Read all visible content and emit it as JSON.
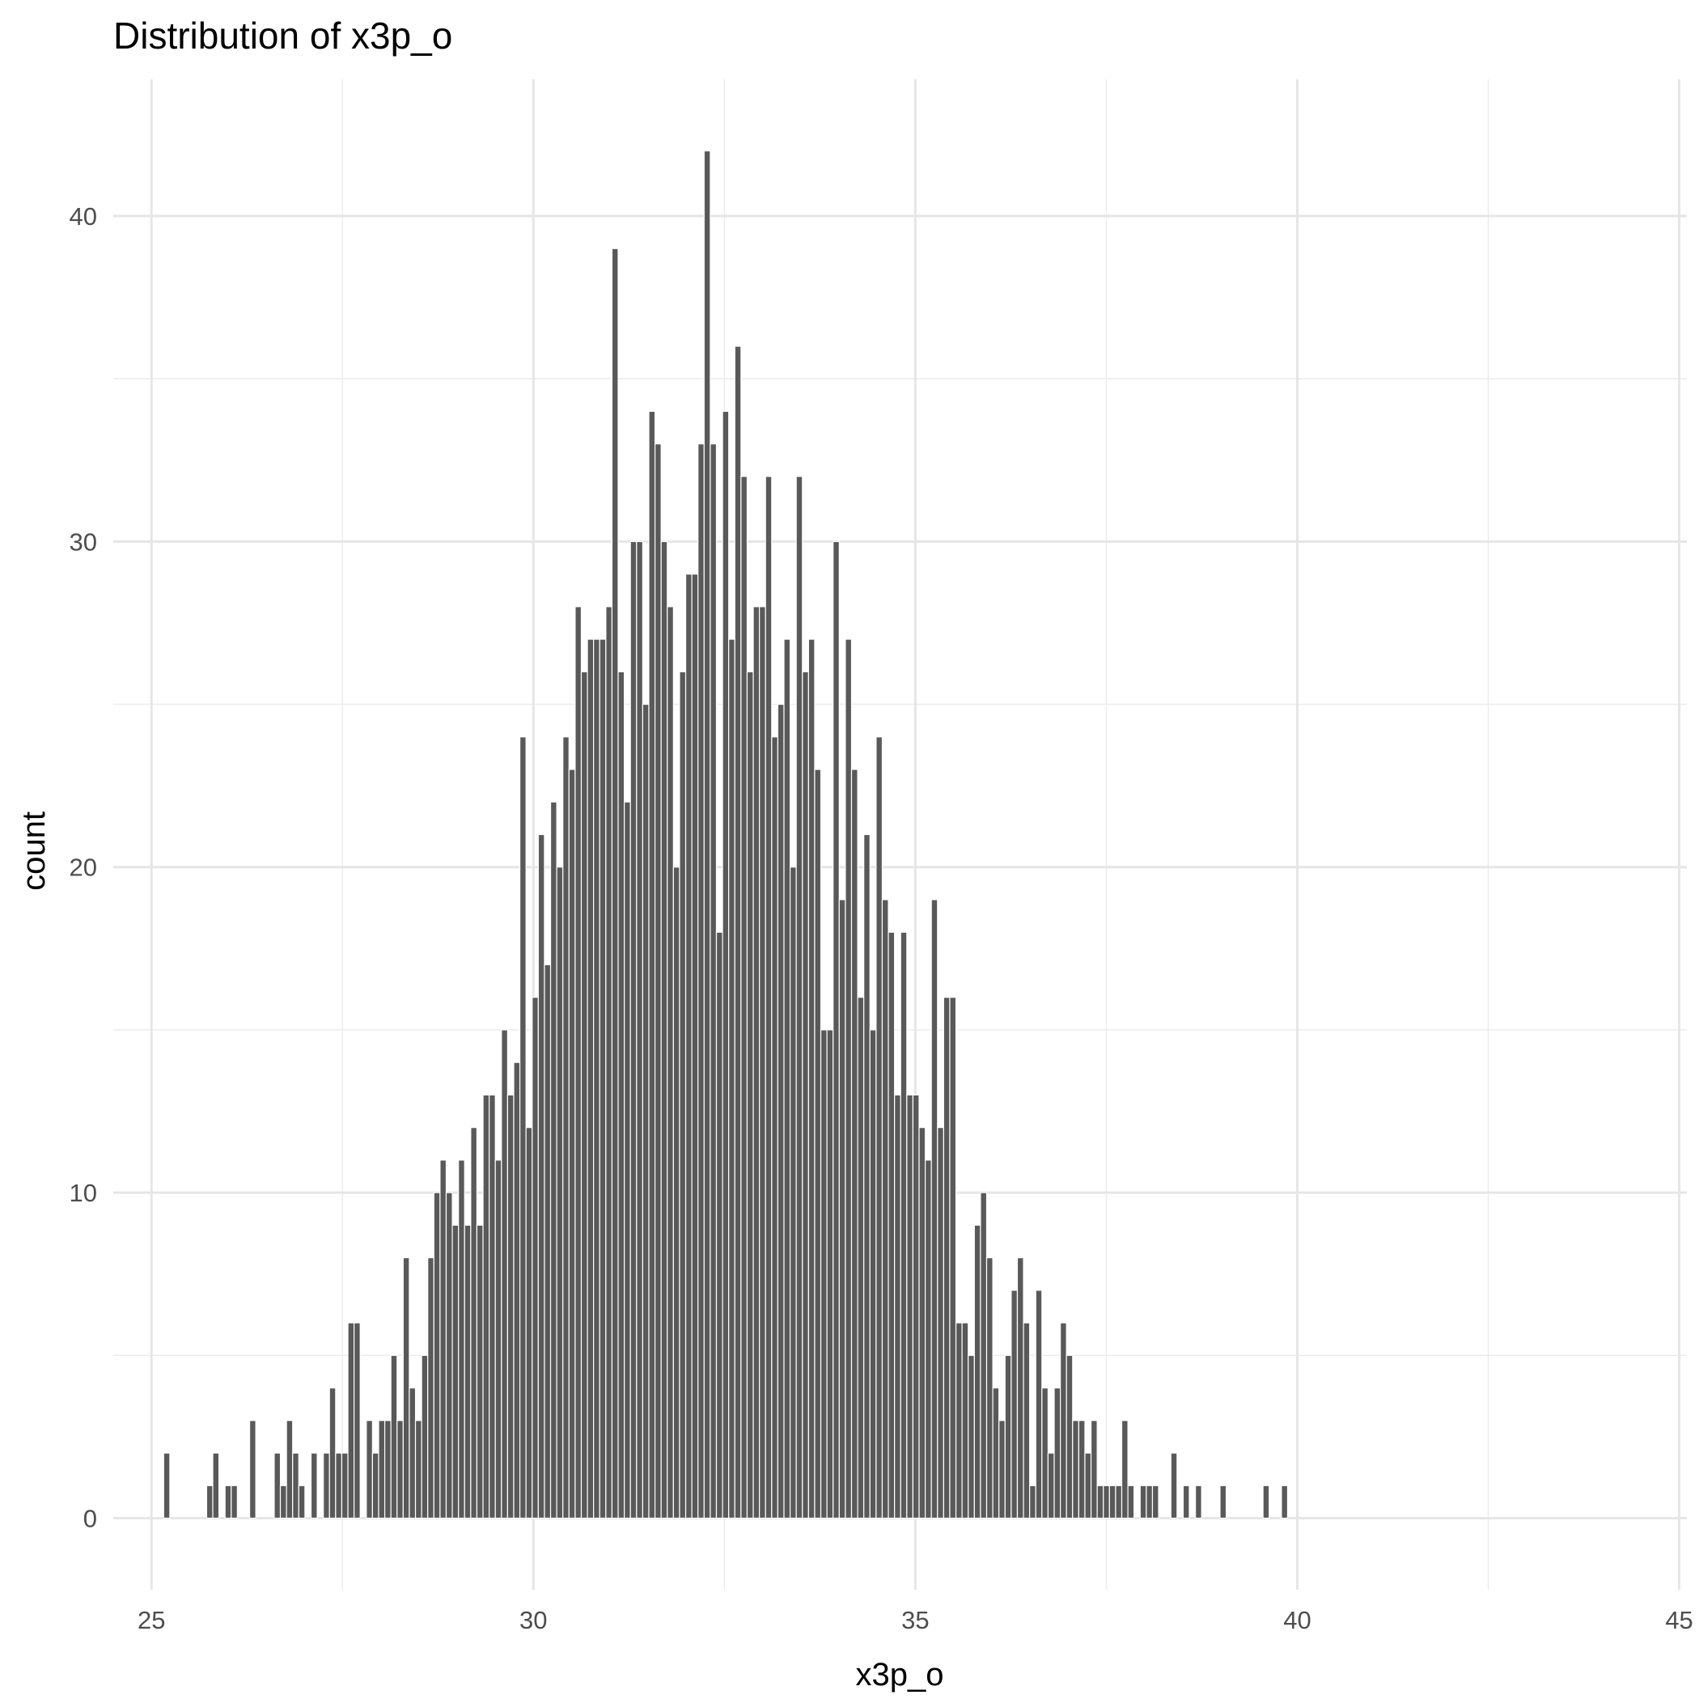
{
  "chart_data": {
    "type": "bar",
    "title": "Distribution of x3p_o",
    "xlabel": "x3p_o",
    "ylabel": "count",
    "xlim": [
      24.5,
      45.1
    ],
    "ylim": [
      -2.2,
      44.2
    ],
    "x_ticks": [
      25,
      30,
      35,
      40,
      45
    ],
    "x_minor_ticks": [
      27.5,
      32.5,
      37.5,
      42.5
    ],
    "y_ticks": [
      0,
      10,
      20,
      30,
      40
    ],
    "y_minor_ticks": [
      5,
      15,
      25,
      35
    ],
    "grid": true,
    "legend": "none",
    "bar_color": "#595959",
    "bin_width": 0.0804,
    "x_start": 25.2,
    "values": [
      2,
      0,
      0,
      0,
      0,
      0,
      0,
      1,
      2,
      0,
      1,
      1,
      0,
      0,
      3,
      0,
      0,
      0,
      2,
      1,
      3,
      2,
      1,
      0,
      2,
      0,
      2,
      4,
      2,
      2,
      6,
      6,
      0,
      3,
      2,
      3,
      3,
      5,
      3,
      8,
      4,
      3,
      5,
      8,
      10,
      11,
      10,
      9,
      11,
      9,
      12,
      9,
      13,
      13,
      11,
      15,
      13,
      14,
      24,
      12,
      16,
      21,
      17,
      22,
      20,
      24,
      23,
      28,
      26,
      27,
      27,
      27,
      28,
      39,
      26,
      22,
      30,
      30,
      25,
      34,
      33,
      30,
      28,
      20,
      26,
      29,
      29,
      33,
      42,
      33,
      18,
      34,
      27,
      36,
      32,
      26,
      28,
      28,
      32,
      24,
      25,
      27,
      20,
      32,
      26,
      27,
      23,
      15,
      15,
      30,
      19,
      27,
      23,
      16,
      21,
      15,
      24,
      19,
      18,
      13,
      18,
      13,
      13,
      12,
      11,
      19,
      12,
      16,
      16,
      6,
      6,
      5,
      9,
      10,
      8,
      4,
      3,
      5,
      7,
      8,
      6,
      1,
      7,
      4,
      2,
      4,
      6,
      5,
      3,
      3,
      2,
      3,
      1,
      1,
      1,
      1,
      3,
      1,
      0,
      1,
      1,
      1,
      0,
      0,
      2,
      0,
      1,
      0,
      1,
      0,
      0,
      0,
      1,
      0,
      0,
      0,
      0,
      0,
      0,
      1,
      0,
      0,
      1
    ]
  }
}
